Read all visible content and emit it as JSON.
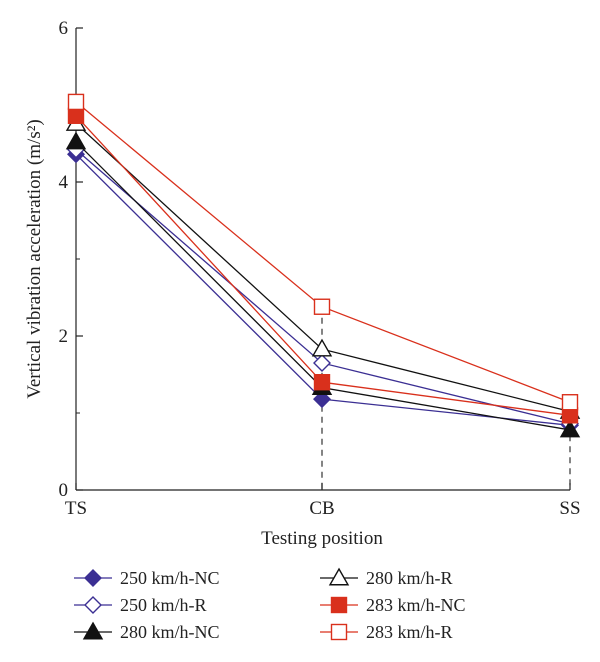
{
  "chart_data": {
    "type": "line",
    "categories": [
      "TS",
      "CB",
      "SS"
    ],
    "xlabel": "Testing position",
    "ylabel": "Vertical vibration acceleration (m/s²)",
    "ylim": [
      0,
      6
    ],
    "yticks": [
      "0",
      "2",
      "4",
      "6"
    ],
    "grid": false,
    "legend_position": "bottom",
    "guide_lines": "dashed vertical lines at CB and SS",
    "series": [
      {
        "name": "250 km/h-NC",
        "values": [
          4.36,
          1.18,
          0.84
        ],
        "color": "#3b2f93",
        "marker": "diamond",
        "filled": true
      },
      {
        "name": "250 km/h-R",
        "values": [
          4.42,
          1.65,
          0.86
        ],
        "color": "#3b2f93",
        "marker": "diamond",
        "filled": false
      },
      {
        "name": "280 km/h-NC",
        "values": [
          4.52,
          1.33,
          0.78
        ],
        "color": "#111111",
        "marker": "triangle",
        "filled": true
      },
      {
        "name": "280 km/h-R",
        "values": [
          4.76,
          1.83,
          1.02
        ],
        "color": "#111111",
        "marker": "triangle",
        "filled": false
      },
      {
        "name": "283 km/h-NC",
        "values": [
          4.86,
          1.4,
          0.97
        ],
        "color": "#d9301c",
        "marker": "square",
        "filled": true
      },
      {
        "name": "283 km/h-R",
        "values": [
          5.04,
          2.38,
          1.14
        ],
        "color": "#d9301c",
        "marker": "square",
        "filled": false
      }
    ]
  }
}
